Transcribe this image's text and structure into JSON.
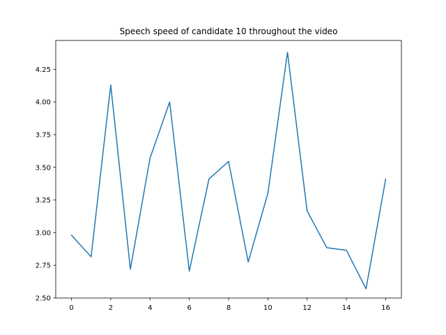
{
  "chart_data": {
    "type": "line",
    "title": "Speech speed of candidate 10 throughout the video",
    "xlabel": "",
    "ylabel": "",
    "x": [
      0,
      1,
      2,
      3,
      4,
      5,
      6,
      7,
      8,
      9,
      10,
      11,
      12,
      13,
      14,
      15,
      16
    ],
    "series": [
      {
        "values": [
          2.98,
          2.815,
          4.13,
          2.72,
          3.57,
          4.0,
          2.705,
          3.41,
          3.545,
          2.775,
          3.3,
          4.38,
          3.165,
          2.885,
          2.865,
          2.57,
          3.41
        ],
        "color": "#1f77b4"
      }
    ],
    "xlim": [
      -0.8,
      16.8
    ],
    "ylim": [
      2.4995,
      4.4705
    ],
    "xticks": [
      0,
      2,
      4,
      6,
      8,
      10,
      12,
      14,
      16
    ],
    "xtick_labels": [
      "0",
      "2",
      "4",
      "6",
      "8",
      "10",
      "12",
      "14",
      "16"
    ],
    "yticks": [
      2.5,
      2.75,
      3.0,
      3.25,
      3.5,
      3.75,
      4.0,
      4.25
    ],
    "ytick_labels": [
      "2.50",
      "2.75",
      "3.00",
      "3.25",
      "3.50",
      "3.75",
      "4.00",
      "4.25"
    ],
    "grid": false,
    "legend": "none"
  }
}
